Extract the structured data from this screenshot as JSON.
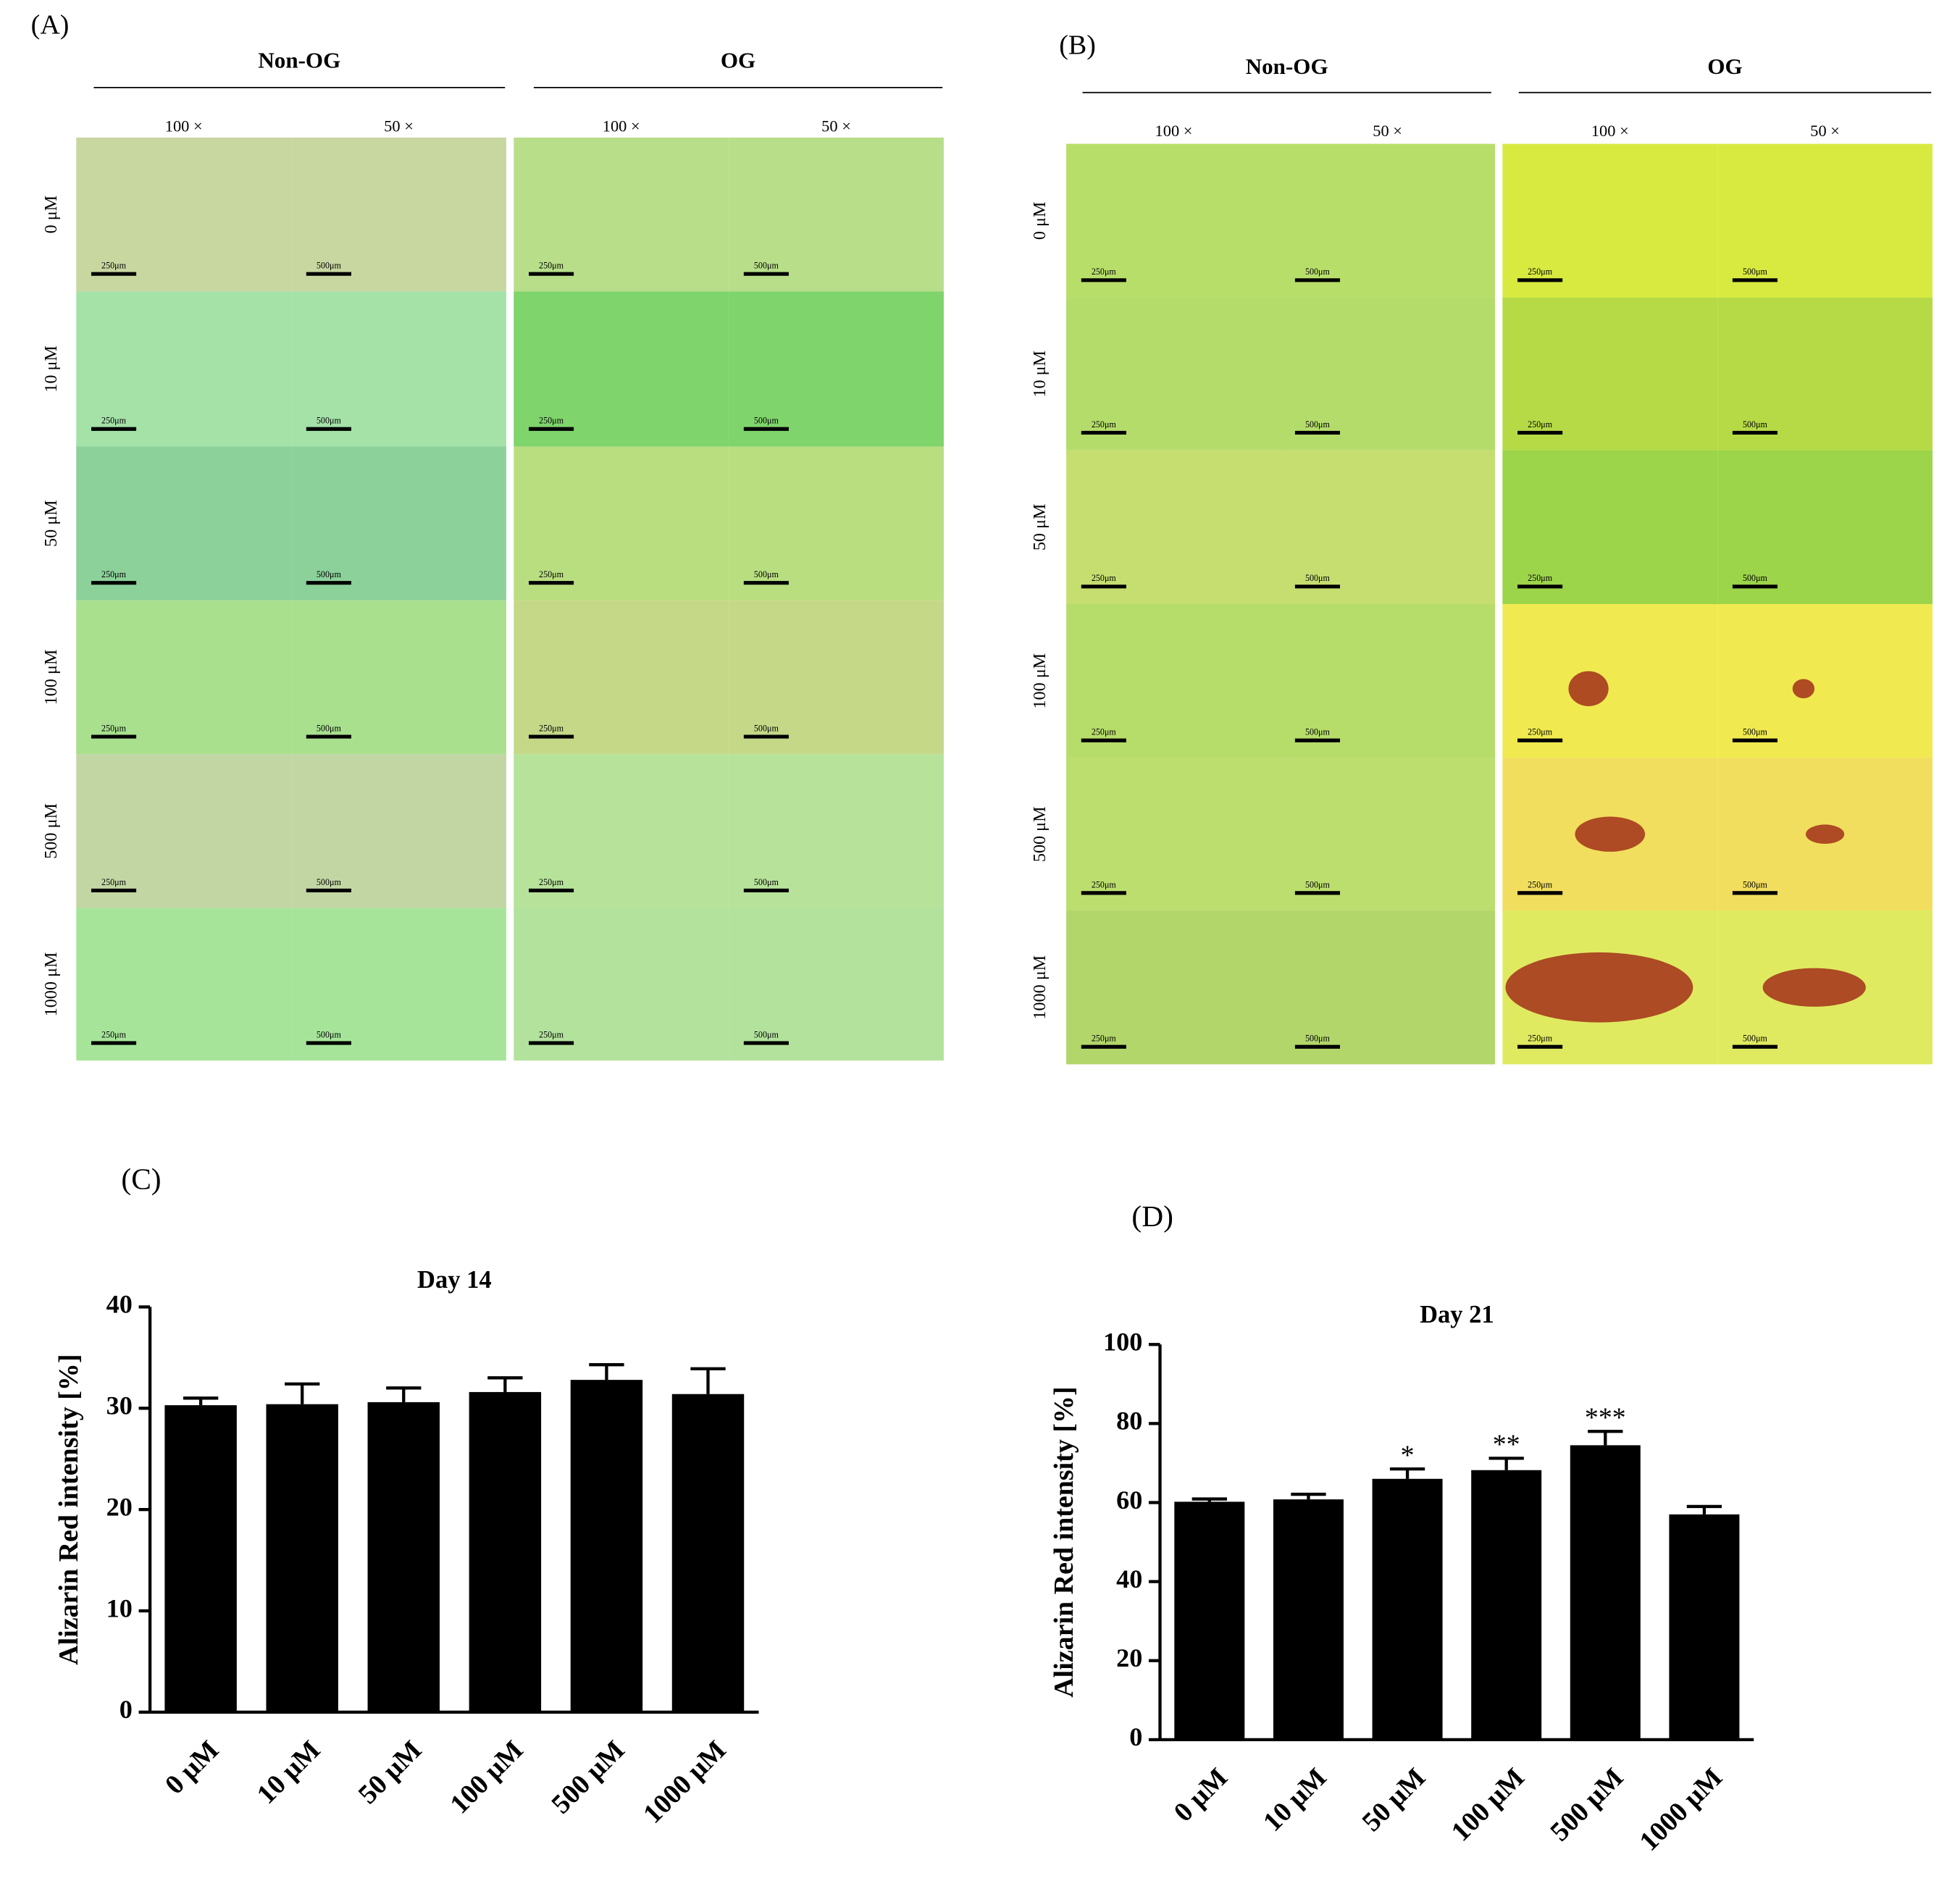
{
  "panels": [
    {
      "label": "(A)",
      "groups": [
        {
          "name": "Non-OG",
          "magnifications": [
            "100 ×",
            "50 ×"
          ]
        },
        {
          "name": "OG",
          "magnifications": [
            "100 ×",
            "50 ×"
          ]
        }
      ],
      "rows": [
        "0 μM",
        "10 μM",
        "50 μM",
        "100 μM",
        "500 μM",
        "1000 μM"
      ],
      "scale_bars": [
        "250μm",
        "500μm"
      ]
    },
    {
      "label": "(B)",
      "groups": [
        {
          "name": "Non-OG",
          "magnifications": [
            "100 ×",
            "50 ×"
          ]
        },
        {
          "name": "OG",
          "magnifications": [
            "100 ×",
            "50 ×"
          ]
        }
      ],
      "rows": [
        "0 μM",
        "10 μM",
        "50 μM",
        "100 μM",
        "500 μM",
        "1000 μM"
      ],
      "scale_bars": [
        "250μm",
        "500μm"
      ]
    }
  ],
  "chart_data": [
    {
      "type": "bar",
      "panel_label": "(C)",
      "title": "Day 14",
      "y_label": "Alizarin Red intensity [%]",
      "categories": [
        "0 μM",
        "10 μM",
        "50 μM",
        "100 μM",
        "500 μM",
        "1000 μM"
      ],
      "values": [
        30.3,
        30.4,
        30.6,
        31.6,
        32.8,
        31.4
      ],
      "errors": [
        0.7,
        2.0,
        1.4,
        1.4,
        1.5,
        2.5
      ],
      "color": "#000000",
      "ylim": [
        0,
        40
      ],
      "yticks": [
        0,
        10,
        20,
        30,
        40
      ]
    },
    {
      "type": "bar",
      "panel_label": "(D)",
      "title": "Day 21",
      "y_label": "Alizarin Red intensity [%]",
      "categories": [
        "0 μM",
        "10 μM",
        "50 μM",
        "100 μM",
        "500 μM",
        "1000 μM"
      ],
      "values": [
        60.2,
        60.8,
        66.0,
        68.2,
        74.5,
        57.0
      ],
      "errors": [
        0.7,
        1.3,
        2.5,
        3.0,
        3.5,
        2.0
      ],
      "significance": [
        null,
        null,
        "*",
        "**",
        "***",
        null
      ],
      "color": "#000000",
      "ylim": [
        0,
        100
      ],
      "yticks": [
        0,
        20,
        40,
        60,
        80,
        100
      ]
    }
  ]
}
